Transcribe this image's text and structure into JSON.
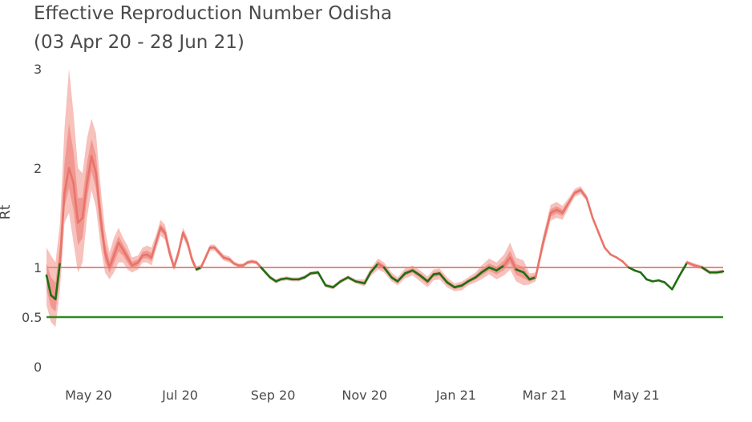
{
  "chart_data": {
    "type": "line",
    "title": "Effective Reproduction Number Odisha",
    "subtitle": "(03 Apr 20 - 28 Jun 21)",
    "xlabel": "",
    "ylabel": "Rt",
    "xlim": [
      "2020-04-03",
      "2021-06-28"
    ],
    "ylim": [
      0,
      3
    ],
    "grid": false,
    "y_ticks": [
      {
        "value": 0,
        "label": "0"
      },
      {
        "value": 0.5,
        "label": "0.5"
      },
      {
        "value": 1,
        "label": "1"
      },
      {
        "value": 2,
        "label": "2"
      },
      {
        "value": 3,
        "label": "3"
      }
    ],
    "x_ticks": [
      {
        "date": "2020-05-01",
        "label": "May 20"
      },
      {
        "date": "2020-07-01",
        "label": "Jul 20"
      },
      {
        "date": "2020-09-01",
        "label": "Sep 20"
      },
      {
        "date": "2020-11-01",
        "label": "Nov 20"
      },
      {
        "date": "2021-01-01",
        "label": "Jan 21"
      },
      {
        "date": "2021-03-01",
        "label": "Mar 21"
      },
      {
        "date": "2021-05-01",
        "label": "May 21"
      }
    ],
    "reference_lines": [
      {
        "y": 1,
        "color": "#e8897f"
      },
      {
        "y": 0.5,
        "color": "#2e8b23"
      }
    ],
    "colors": {
      "above_threshold": "#e8746a",
      "below_threshold": "#1f6e12",
      "band_outer": "#f6b6b0",
      "band_inner": "#ef8a84"
    },
    "series": [
      {
        "x": [
          "2020-04-03",
          "2020-04-06",
          "2020-04-09",
          "2020-04-12",
          "2020-04-15",
          "2020-04-18",
          "2020-04-21",
          "2020-04-24",
          "2020-04-27",
          "2020-04-30",
          "2020-05-03",
          "2020-05-06",
          "2020-05-09",
          "2020-05-12",
          "2020-05-15",
          "2020-05-18",
          "2020-05-21",
          "2020-05-24",
          "2020-05-27",
          "2020-05-30",
          "2020-06-03",
          "2020-06-06",
          "2020-06-09",
          "2020-06-12",
          "2020-06-15",
          "2020-06-18",
          "2020-06-21",
          "2020-06-24",
          "2020-06-27",
          "2020-06-30",
          "2020-07-03",
          "2020-07-06",
          "2020-07-09",
          "2020-07-12",
          "2020-07-15",
          "2020-07-18",
          "2020-07-21",
          "2020-07-24",
          "2020-07-27",
          "2020-07-30",
          "2020-08-03",
          "2020-08-06",
          "2020-08-09",
          "2020-08-12",
          "2020-08-15",
          "2020-08-18",
          "2020-08-21",
          "2020-08-24",
          "2020-08-27",
          "2020-08-30",
          "2020-09-03",
          "2020-09-06",
          "2020-09-10",
          "2020-09-14",
          "2020-09-18",
          "2020-09-22",
          "2020-09-26",
          "2020-10-01",
          "2020-10-06",
          "2020-10-11",
          "2020-10-16",
          "2020-10-21",
          "2020-10-26",
          "2020-11-01",
          "2020-11-05",
          "2020-11-10",
          "2020-11-14",
          "2020-11-19",
          "2020-11-23",
          "2020-11-28",
          "2020-12-03",
          "2020-12-08",
          "2020-12-13",
          "2020-12-17",
          "2020-12-21",
          "2020-12-26",
          "2020-12-31",
          "2021-01-05",
          "2021-01-09",
          "2021-01-14",
          "2021-01-18",
          "2021-01-23",
          "2021-01-28",
          "2021-02-02",
          "2021-02-06",
          "2021-02-10",
          "2021-02-15",
          "2021-02-19",
          "2021-02-23",
          "2021-02-28",
          "2021-03-05",
          "2021-03-09",
          "2021-03-13",
          "2021-03-17",
          "2021-03-21",
          "2021-03-25",
          "2021-03-29",
          "2021-04-02",
          "2021-04-06",
          "2021-04-10",
          "2021-04-14",
          "2021-04-18",
          "2021-04-22",
          "2021-04-26",
          "2021-04-30",
          "2021-05-04",
          "2021-05-08",
          "2021-05-12",
          "2021-05-16",
          "2021-05-20",
          "2021-05-25",
          "2021-05-30",
          "2021-06-04",
          "2021-06-09",
          "2021-06-14",
          "2021-06-19",
          "2021-06-24",
          "2021-06-28"
        ],
        "y": [
          0.92,
          0.72,
          0.68,
          1.05,
          1.75,
          2.0,
          1.85,
          1.45,
          1.5,
          1.85,
          2.12,
          1.95,
          1.5,
          1.15,
          1.0,
          1.12,
          1.25,
          1.18,
          1.1,
          1.02,
          1.05,
          1.12,
          1.13,
          1.1,
          1.25,
          1.4,
          1.35,
          1.15,
          1.0,
          1.15,
          1.35,
          1.25,
          1.08,
          0.98,
          1.0,
          1.1,
          1.2,
          1.2,
          1.15,
          1.1,
          1.08,
          1.04,
          1.02,
          1.02,
          1.05,
          1.06,
          1.05,
          1.0,
          0.95,
          0.9,
          0.86,
          0.88,
          0.89,
          0.88,
          0.88,
          0.9,
          0.94,
          0.95,
          0.82,
          0.8,
          0.86,
          0.9,
          0.86,
          0.84,
          0.95,
          1.04,
          1.0,
          0.9,
          0.86,
          0.94,
          0.97,
          0.92,
          0.86,
          0.93,
          0.94,
          0.85,
          0.8,
          0.82,
          0.86,
          0.9,
          0.95,
          1.0,
          0.97,
          1.02,
          1.1,
          0.98,
          0.95,
          0.88,
          0.9,
          1.25,
          1.55,
          1.58,
          1.55,
          1.65,
          1.75,
          1.78,
          1.7,
          1.5,
          1.35,
          1.2,
          1.13,
          1.1,
          1.06,
          1.0,
          0.97,
          0.95,
          0.88,
          0.86,
          0.87,
          0.85,
          0.78,
          0.92,
          1.05,
          1.02,
          1.0,
          0.95,
          0.95,
          0.96
        ],
        "lower": [
          0.62,
          0.45,
          0.4,
          0.78,
          1.45,
          1.55,
          1.25,
          0.95,
          1.05,
          1.5,
          1.78,
          1.6,
          1.22,
          0.95,
          0.88,
          0.95,
          1.05,
          1.05,
          0.98,
          0.95,
          0.98,
          1.05,
          1.05,
          1.02,
          1.18,
          1.32,
          1.28,
          1.1,
          0.97,
          1.1,
          1.3,
          1.2,
          1.04,
          0.96,
          0.98,
          1.07,
          1.17,
          1.17,
          1.12,
          1.07,
          1.05,
          1.02,
          1.0,
          1.0,
          1.03,
          1.04,
          1.03,
          0.98,
          0.93,
          0.88,
          0.84,
          0.86,
          0.87,
          0.86,
          0.86,
          0.88,
          0.92,
          0.93,
          0.8,
          0.78,
          0.84,
          0.88,
          0.84,
          0.81,
          0.91,
          0.98,
          0.95,
          0.86,
          0.82,
          0.89,
          0.92,
          0.86,
          0.8,
          0.87,
          0.88,
          0.8,
          0.76,
          0.77,
          0.82,
          0.85,
          0.88,
          0.93,
          0.88,
          0.92,
          0.98,
          0.86,
          0.82,
          0.83,
          0.86,
          1.18,
          1.47,
          1.5,
          1.48,
          1.6,
          1.71,
          1.74,
          1.67,
          1.48,
          1.34,
          1.19,
          1.12,
          1.09,
          1.05,
          0.99,
          0.96,
          0.94,
          0.87,
          0.85,
          0.86,
          0.84,
          0.77,
          0.9,
          1.03,
          1.0,
          0.98,
          0.93,
          0.93,
          0.94
        ],
        "upper": [
          1.2,
          1.12,
          1.05,
          1.45,
          2.4,
          3.0,
          2.55,
          2.0,
          1.95,
          2.3,
          2.5,
          2.35,
          1.82,
          1.38,
          1.15,
          1.3,
          1.4,
          1.3,
          1.22,
          1.1,
          1.12,
          1.2,
          1.22,
          1.2,
          1.33,
          1.48,
          1.43,
          1.22,
          1.05,
          1.2,
          1.4,
          1.3,
          1.12,
          1.01,
          1.03,
          1.13,
          1.23,
          1.23,
          1.18,
          1.13,
          1.11,
          1.06,
          1.04,
          1.04,
          1.07,
          1.08,
          1.07,
          1.02,
          0.97,
          0.92,
          0.88,
          0.9,
          0.91,
          0.9,
          0.9,
          0.92,
          0.96,
          0.97,
          0.84,
          0.82,
          0.88,
          0.92,
          0.88,
          0.88,
          0.99,
          1.09,
          1.05,
          0.95,
          0.9,
          0.99,
          1.02,
          0.97,
          0.91,
          0.98,
          0.99,
          0.9,
          0.84,
          0.86,
          0.9,
          0.95,
          1.02,
          1.09,
          1.05,
          1.13,
          1.25,
          1.1,
          1.07,
          0.94,
          0.95,
          1.32,
          1.63,
          1.66,
          1.62,
          1.7,
          1.79,
          1.82,
          1.73,
          1.52,
          1.36,
          1.21,
          1.14,
          1.11,
          1.07,
          1.01,
          0.98,
          0.96,
          0.89,
          0.87,
          0.88,
          0.86,
          0.79,
          0.94,
          1.07,
          1.04,
          1.02,
          0.97,
          0.97,
          0.98
        ]
      }
    ]
  }
}
